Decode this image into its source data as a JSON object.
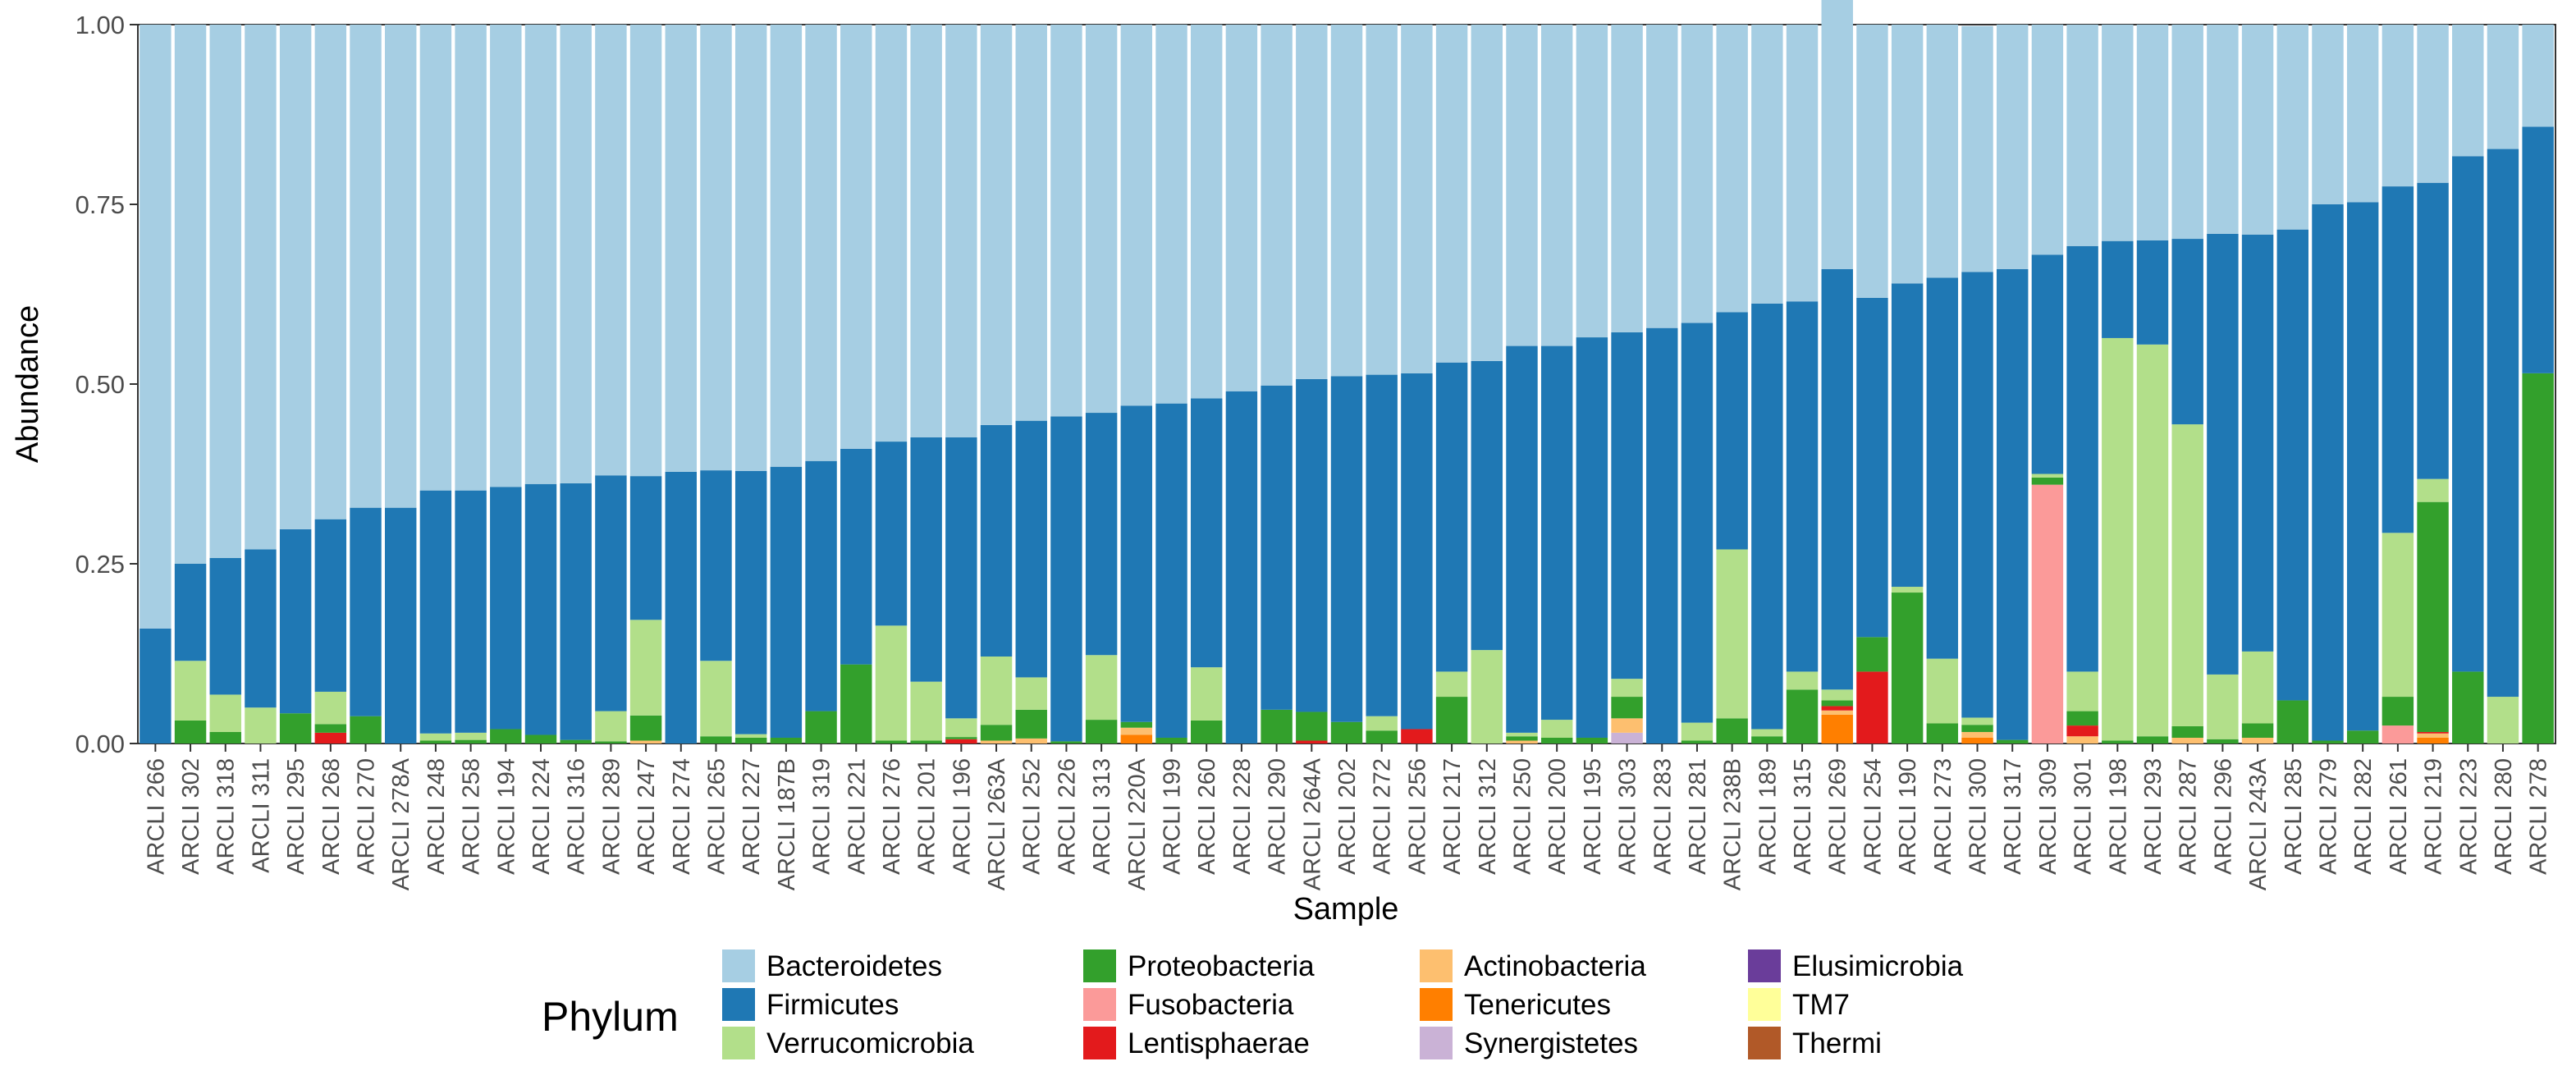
{
  "chart_data": {
    "type": "bar",
    "stacked": true,
    "xlabel": "Sample",
    "ylabel": "Abundance",
    "ylim": [
      0,
      1
    ],
    "yticks": [
      0,
      0.25,
      0.5,
      0.75,
      1
    ],
    "ytick_labels": [
      "0.00",
      "0.25",
      "0.50",
      "0.75",
      "1.00"
    ],
    "legend_title": "Phylum",
    "legend_position": "bottom",
    "categories": [
      "ARCLI 266",
      "ARCLI 302",
      "ARCLI 318",
      "ARCLI 311",
      "ARCLI 295",
      "ARCLI 268",
      "ARCLI 270",
      "ARCLI 278A",
      "ARCLI 248",
      "ARCLI 258",
      "ARCLI 194",
      "ARCLI 224",
      "ARCLI 316",
      "ARCLI 289",
      "ARCLI 247",
      "ARCLI 274",
      "ARCLI 265",
      "ARCLI 227",
      "ARCLI 187B",
      "ARCLI 319",
      "ARCLI 221",
      "ARCLI 276",
      "ARCLI 201",
      "ARCLI 196",
      "ARCLI 263A",
      "ARCLI 252",
      "ARCLI 226",
      "ARCLI 313",
      "ARCLI 220A",
      "ARCLI 199",
      "ARCLI 260",
      "ARCLI 228",
      "ARCLI 290",
      "ARCLI 264A",
      "ARCLI 202",
      "ARCLI 272",
      "ARCLI 256",
      "ARCLI 217",
      "ARCLI 312",
      "ARCLI 250",
      "ARCLI 200",
      "ARCLI 195",
      "ARCLI 303",
      "ARCLI 283",
      "ARCLI 281",
      "ARCLI 238B",
      "ARCLI 189",
      "ARCLI 315",
      "ARCLI 269",
      "ARCLI 254",
      "ARCLI 190",
      "ARCLI 273",
      "ARCLI 300",
      "ARCLI 317",
      "ARCLI 309",
      "ARCLI 301",
      "ARCLI 198",
      "ARCLI 293",
      "ARCLI 287",
      "ARCLI 296",
      "ARCLI 243A",
      "ARCLI 285",
      "ARCLI 279",
      "ARCLI 282",
      "ARCLI 261",
      "ARCLI 219",
      "ARCLI 223",
      "ARCLI 280",
      "ARCLI 278"
    ],
    "series": [
      {
        "name": "Thermi",
        "color": "#b15928",
        "values": [
          0,
          0,
          0,
          0,
          0,
          0,
          0,
          0,
          0,
          0,
          0,
          0,
          0,
          0,
          0,
          0,
          0,
          0,
          0,
          0,
          0,
          0,
          0,
          0,
          0,
          0,
          0,
          0,
          0,
          0,
          0,
          0,
          0,
          0,
          0,
          0,
          0,
          0,
          0,
          0,
          0,
          0,
          0,
          0,
          0,
          0,
          0,
          0,
          0,
          0,
          0,
          0,
          0,
          0,
          0,
          0,
          0,
          0,
          0,
          0,
          0,
          0,
          0,
          0,
          0,
          0,
          0,
          0,
          0
        ]
      },
      {
        "name": "TM7",
        "color": "#ffff99",
        "values": [
          0,
          0,
          0,
          0,
          0,
          0,
          0,
          0,
          0,
          0,
          0,
          0,
          0,
          0,
          0,
          0,
          0,
          0,
          0,
          0,
          0,
          0,
          0,
          0,
          0,
          0,
          0,
          0,
          0,
          0,
          0,
          0,
          0,
          0,
          0,
          0,
          0,
          0,
          0,
          0,
          0,
          0,
          0,
          0,
          0,
          0,
          0,
          0,
          0,
          0,
          0,
          0,
          0,
          0,
          0,
          0,
          0,
          0,
          0,
          0,
          0,
          0,
          0,
          0,
          0,
          0,
          0,
          0,
          0
        ]
      },
      {
        "name": "Elusimicrobia",
        "color": "#6a3d9a",
        "values": [
          0,
          0,
          0,
          0,
          0,
          0,
          0,
          0,
          0,
          0,
          0,
          0,
          0,
          0,
          0,
          0,
          0,
          0,
          0,
          0,
          0,
          0,
          0,
          0,
          0,
          0,
          0,
          0,
          0,
          0,
          0,
          0,
          0,
          0,
          0,
          0,
          0,
          0,
          0,
          0,
          0,
          0,
          0,
          0,
          0,
          0,
          0,
          0,
          0,
          0,
          0,
          0,
          0,
          0,
          0,
          0,
          0,
          0,
          0,
          0,
          0,
          0,
          0,
          0,
          0,
          0,
          0,
          0,
          0
        ]
      },
      {
        "name": "Synergistetes",
        "color": "#cab2d6",
        "values": [
          0,
          0,
          0,
          0,
          0,
          0,
          0,
          0,
          0,
          0,
          0,
          0,
          0,
          0,
          0,
          0,
          0,
          0,
          0,
          0,
          0,
          0,
          0,
          0,
          0,
          0,
          0,
          0,
          0,
          0,
          0,
          0,
          0,
          0,
          0,
          0,
          0,
          0,
          0,
          0,
          0,
          0,
          0.015,
          0,
          0,
          0,
          0,
          0,
          0,
          0,
          0,
          0,
          0,
          0,
          0,
          0,
          0,
          0,
          0,
          0,
          0,
          0,
          0,
          0,
          0,
          0,
          0,
          0,
          0
        ]
      },
      {
        "name": "Tenericutes",
        "color": "#ff7f00",
        "values": [
          0,
          0,
          0,
          0,
          0,
          0,
          0,
          0,
          0,
          0,
          0,
          0,
          0,
          0,
          0,
          0,
          0,
          0,
          0,
          0,
          0,
          0,
          0,
          0,
          0,
          0,
          0,
          0,
          0.012,
          0,
          0,
          0,
          0,
          0,
          0,
          0,
          0,
          0,
          0,
          0,
          0,
          0,
          0,
          0,
          0,
          0,
          0,
          0,
          0.04,
          0,
          0,
          0,
          0.008,
          0,
          0,
          0,
          0,
          0,
          0,
          0,
          0,
          0,
          0,
          0,
          0,
          0.008,
          0,
          0,
          0
        ]
      },
      {
        "name": "Actinobacteria",
        "color": "#fdbf6f",
        "values": [
          0,
          0,
          0,
          0,
          0,
          0,
          0,
          0,
          0,
          0,
          0,
          0,
          0,
          0,
          0.004,
          0,
          0,
          0,
          0,
          0,
          0,
          0,
          0,
          0,
          0.004,
          0.007,
          0,
          0,
          0.01,
          0,
          0,
          0,
          0,
          0,
          0,
          0,
          0,
          0,
          0,
          0.004,
          0,
          0,
          0.02,
          0,
          0,
          0,
          0,
          0,
          0.006,
          0,
          0,
          0,
          0.008,
          0,
          0,
          0.01,
          0,
          0,
          0.008,
          0,
          0.008,
          0,
          0,
          0,
          0,
          0.006,
          0,
          0,
          0
        ]
      },
      {
        "name": "Lentisphaerae",
        "color": "#e31a1c",
        "values": [
          0,
          0,
          0,
          0,
          0,
          0.015,
          0,
          0,
          0,
          0,
          0,
          0,
          0,
          0,
          0,
          0,
          0,
          0,
          0,
          0,
          0,
          0,
          0,
          0.006,
          0,
          0,
          0,
          0,
          0,
          0,
          0,
          0,
          0,
          0.004,
          0,
          0,
          0.02,
          0,
          0,
          0,
          0,
          0,
          0,
          0,
          0,
          0,
          0,
          0,
          0.006,
          0.1,
          0,
          0,
          0,
          0,
          0,
          0.015,
          0,
          0,
          0,
          0,
          0,
          0,
          0,
          0,
          0,
          0.002,
          0,
          0,
          0
        ]
      },
      {
        "name": "Fusobacteria",
        "color": "#fb9a99",
        "values": [
          0,
          0,
          0,
          0,
          0,
          0,
          0,
          0,
          0,
          0,
          0,
          0,
          0,
          0,
          0,
          0,
          0,
          0,
          0,
          0,
          0,
          0,
          0,
          0,
          0,
          0,
          0,
          0,
          0,
          0,
          0,
          0,
          0,
          0,
          0,
          0,
          0,
          0,
          0,
          0,
          0,
          0,
          0,
          0,
          0,
          0,
          0,
          0,
          0,
          0,
          0,
          0,
          0,
          0,
          0.36,
          0,
          0,
          0,
          0,
          0,
          0,
          0,
          0,
          0,
          0.025,
          0,
          0,
          0,
          0
        ]
      },
      {
        "name": "Proteobacteria",
        "color": "#33a02c",
        "values": [
          0,
          0.032,
          0.016,
          0,
          0.042,
          0.012,
          0.038,
          0,
          0.004,
          0.005,
          0.02,
          0.012,
          0.005,
          0.003,
          0.035,
          0,
          0.01,
          0.008,
          0.008,
          0.045,
          0.11,
          0.004,
          0.004,
          0.003,
          0.022,
          0.04,
          0.003,
          0.033,
          0.008,
          0.008,
          0.032,
          0,
          0.047,
          0.04,
          0.03,
          0.018,
          0,
          0.065,
          0,
          0.006,
          0.008,
          0.008,
          0.03,
          0,
          0.004,
          0.035,
          0.01,
          0.075,
          0.008,
          0.048,
          0.21,
          0.028,
          0.01,
          0.005,
          0.01,
          0.02,
          0.004,
          0.01,
          0.016,
          0.006,
          0.02,
          0.06,
          0.004,
          0.018,
          0.04,
          0.32,
          0.1,
          0,
          0.515
        ]
      },
      {
        "name": "Verrucomicrobia",
        "color": "#b2df8a",
        "values": [
          0,
          0.083,
          0.052,
          0.05,
          0,
          0.045,
          0,
          0,
          0.01,
          0.01,
          0,
          0,
          0,
          0.042,
          0.133,
          0,
          0.105,
          0.005,
          0,
          0,
          0,
          0.16,
          0.082,
          0.026,
          0.095,
          0.045,
          0,
          0.09,
          0,
          0,
          0.074,
          0,
          0,
          0,
          0,
          0.02,
          0,
          0.035,
          0.13,
          0.005,
          0.025,
          0,
          0.025,
          0,
          0.025,
          0.235,
          0.01,
          0.025,
          0.015,
          0,
          0.008,
          0.09,
          0.01,
          0,
          0.005,
          0.055,
          0.56,
          0.545,
          0.42,
          0.09,
          0.1,
          0,
          0,
          0,
          0.228,
          0.032,
          0,
          0.065,
          0
        ]
      },
      {
        "name": "Firmicutes",
        "color": "#1f78b4",
        "values": [
          0.16,
          0.135,
          0.19,
          0.22,
          0.256,
          0.24,
          0.29,
          0.328,
          0.338,
          0.337,
          0.337,
          0.349,
          0.357,
          0.328,
          0.2,
          0.378,
          0.265,
          0.366,
          0.377,
          0.348,
          0.3,
          0.256,
          0.34,
          0.391,
          0.322,
          0.357,
          0.452,
          0.337,
          0.44,
          0.465,
          0.374,
          0.49,
          0.451,
          0.463,
          0.481,
          0.475,
          0.495,
          0.43,
          0.402,
          0.538,
          0.52,
          0.557,
          0.482,
          0.578,
          0.556,
          0.33,
          0.592,
          0.515,
          0.585,
          0.472,
          0.422,
          0.53,
          0.62,
          0.655,
          0.305,
          0.592,
          0.135,
          0.145,
          0.258,
          0.613,
          0.58,
          0.655,
          0.746,
          0.735,
          0.482,
          0.412,
          0.717,
          0.762,
          0.343
        ]
      },
      {
        "name": "Bacteroidetes",
        "color": "#a6cee3",
        "values": [
          0.84,
          0.75,
          0.742,
          0.73,
          0.702,
          0.688,
          0.672,
          0.672,
          0.648,
          0.648,
          0.643,
          0.639,
          0.638,
          0.627,
          0.628,
          0.622,
          0.62,
          0.621,
          0.615,
          0.607,
          0.59,
          0.58,
          0.574,
          0.574,
          0.557,
          0.551,
          0.545,
          0.54,
          0.53,
          0.527,
          0.52,
          0.51,
          0.502,
          0.493,
          0.489,
          0.487,
          0.485,
          0.47,
          0.468,
          0.447,
          0.447,
          0.435,
          0.428,
          0.422,
          0.415,
          0.4,
          0.388,
          0.385,
          0.38,
          0.38,
          0.36,
          0.352,
          0.342,
          0.34,
          0.32,
          0.308,
          0.301,
          0.3,
          0.298,
          0.291,
          0.292,
          0.285,
          0.25,
          0.247,
          0.225,
          0.22,
          0.183,
          0.173,
          0.142
        ]
      }
    ],
    "legend_entries": [
      {
        "name": "Bacteroidetes",
        "color": "#a6cee3"
      },
      {
        "name": "Firmicutes",
        "color": "#1f78b4"
      },
      {
        "name": "Verrucomicrobia",
        "color": "#b2df8a"
      },
      {
        "name": "Proteobacteria",
        "color": "#33a02c"
      },
      {
        "name": "Fusobacteria",
        "color": "#fb9a99"
      },
      {
        "name": "Lentisphaerae",
        "color": "#e31a1c"
      },
      {
        "name": "Actinobacteria",
        "color": "#fdbf6f"
      },
      {
        "name": "Tenericutes",
        "color": "#ff7f00"
      },
      {
        "name": "Synergistetes",
        "color": "#cab2d6"
      },
      {
        "name": "Elusimicrobia",
        "color": "#6a3d9a"
      },
      {
        "name": "TM7",
        "color": "#ffff99"
      },
      {
        "name": "Thermi",
        "color": "#b15928"
      }
    ]
  }
}
